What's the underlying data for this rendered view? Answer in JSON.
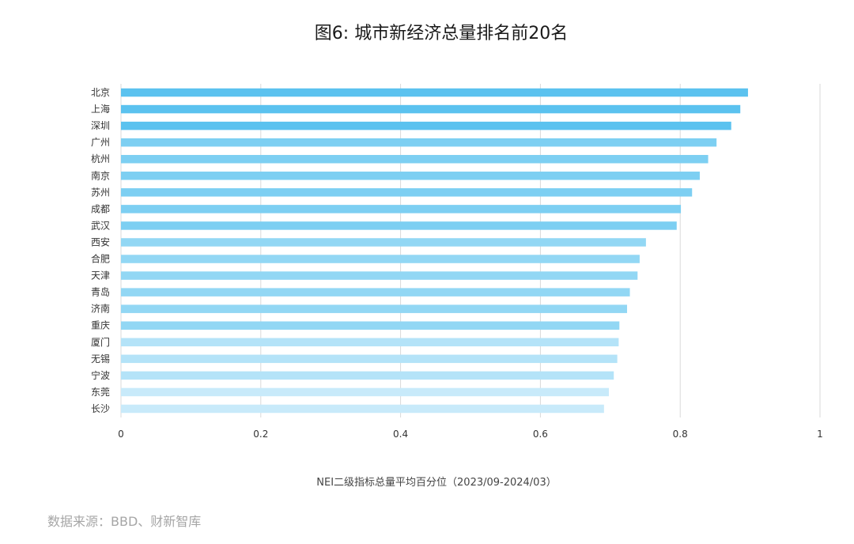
{
  "chart_data": {
    "type": "bar",
    "orientation": "horizontal",
    "title": "图6: 城市新经济总量排名前20名",
    "categories": [
      "北京",
      "上海",
      "深圳",
      "广州",
      "杭州",
      "南京",
      "苏州",
      "成都",
      "武汉",
      "西安",
      "合肥",
      "天津",
      "青岛",
      "济南",
      "重庆",
      "厦门",
      "无锡",
      "宁波",
      "东莞",
      "长沙"
    ],
    "values": [
      0.897,
      0.886,
      0.873,
      0.852,
      0.84,
      0.828,
      0.817,
      0.801,
      0.795,
      0.751,
      0.742,
      0.739,
      0.728,
      0.724,
      0.713,
      0.712,
      0.71,
      0.705,
      0.698,
      0.691
    ],
    "colors": [
      "#5bc2ef",
      "#5bc2ef",
      "#5bc2ef",
      "#7dcff2",
      "#7dcff2",
      "#7dcff2",
      "#7dcff2",
      "#7dcff2",
      "#7dcff2",
      "#92d7f4",
      "#92d7f4",
      "#92d7f4",
      "#92d7f4",
      "#92d7f4",
      "#92d7f4",
      "#b4e3f8",
      "#b4e3f8",
      "#b4e3f8",
      "#c8eafa",
      "#c8eafa"
    ],
    "xlabel": "NEI二级指标总量平均百分位（2023/09-2024/03）",
    "xlim": [
      0,
      1
    ],
    "xticks": [
      0,
      0.2,
      0.4,
      0.6,
      0.8,
      1
    ],
    "xtick_labels": [
      "0",
      "0.2",
      "0.4",
      "0.6",
      "0.8",
      "1"
    ],
    "grid": "vertical",
    "grid_color": "#d9d9d9"
  },
  "source": "数据来源：BBD、财新智库"
}
